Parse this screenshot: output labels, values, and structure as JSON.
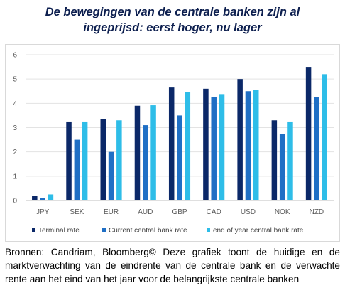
{
  "title_line1": "De bewegingen van de centrale banken zijn al",
  "title_line2": "ingeprijsd: eerst hoger, nu lager",
  "source_text": "Bronnen: Candriam, Bloomberg© Deze grafiek toont de huidige en de marktverwachting van de eindrente van de centrale bank en de verwachte rente aan het eind van het jaar voor de belangrijkste centrale banken",
  "chart_data": {
    "type": "bar",
    "title": "",
    "xlabel": "",
    "ylabel": "",
    "categories": [
      "JPY",
      "SEK",
      "EUR",
      "AUD",
      "GBP",
      "CAD",
      "USD",
      "NOK",
      "NZD"
    ],
    "ylim": [
      0,
      6
    ],
    "yticks": [
      0,
      1,
      2,
      3,
      4,
      5,
      6
    ],
    "grid": true,
    "legend_position": "bottom",
    "series": [
      {
        "name": "Terminal rate",
        "color": "#0b2868",
        "values": [
          0.2,
          3.25,
          3.35,
          3.9,
          4.65,
          4.6,
          5.0,
          3.3,
          5.5
        ]
      },
      {
        "name": "Current central bank rate",
        "color": "#1f6fc5",
        "values": [
          0.1,
          2.5,
          2.0,
          3.1,
          3.5,
          4.25,
          4.5,
          2.75,
          4.25
        ]
      },
      {
        "name": "end of year central bank rate",
        "color": "#2ebde8",
        "values": [
          0.25,
          3.25,
          3.3,
          3.92,
          4.45,
          4.38,
          4.55,
          3.25,
          5.2
        ]
      }
    ]
  }
}
